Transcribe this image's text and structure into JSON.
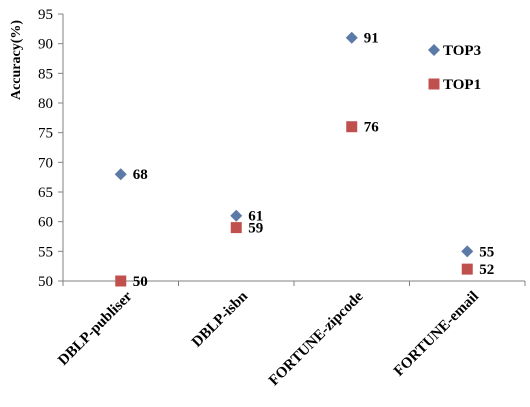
{
  "chart_data": {
    "type": "scatter",
    "title": "",
    "xlabel": "",
    "ylabel": "Accuracy(%)",
    "categories": [
      "DBLP-publiser",
      "DBLP-isbn",
      "FORTUNE-zipcode",
      "FORTUNE-email"
    ],
    "ylim": [
      50,
      95
    ],
    "yticks": [
      50,
      55,
      60,
      65,
      70,
      75,
      80,
      85,
      90,
      95
    ],
    "grid": false,
    "legend_position": "top-right",
    "series": [
      {
        "name": "TOP3",
        "marker": "diamond",
        "color": "#5b7aa6",
        "values": [
          68,
          61,
          91,
          55
        ]
      },
      {
        "name": "TOP1",
        "marker": "square",
        "color": "#c0504d",
        "values": [
          50,
          59,
          76,
          52
        ]
      }
    ]
  }
}
